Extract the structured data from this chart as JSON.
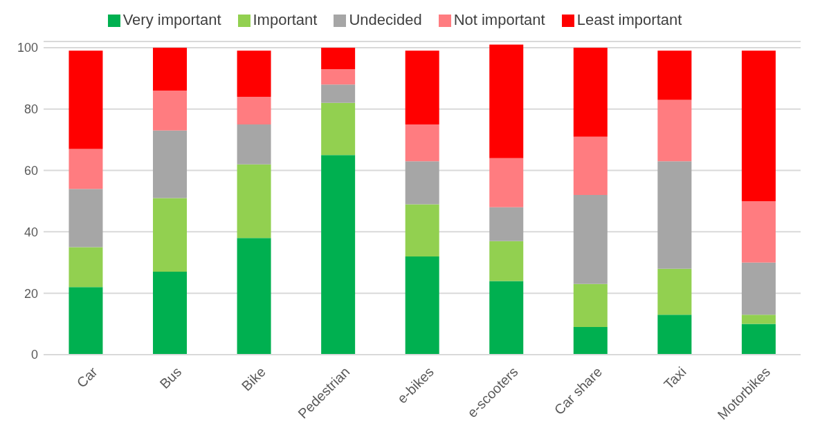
{
  "chart_data": {
    "type": "bar",
    "stacked": true,
    "categories": [
      "Car",
      "Bus",
      "Bike",
      "Pedestrian",
      "e-bikes",
      "e-scooters",
      "Car share",
      "Taxi",
      "Motorbikes"
    ],
    "series": [
      {
        "name": "Very important",
        "color": "#00b050",
        "values": [
          22,
          27,
          38,
          65,
          32,
          24,
          9,
          13,
          10
        ]
      },
      {
        "name": "Important",
        "color": "#92d050",
        "values": [
          13,
          24,
          24,
          17,
          17,
          13,
          14,
          15,
          3
        ]
      },
      {
        "name": "Undecided",
        "color": "#a6a6a6",
        "values": [
          19,
          22,
          13,
          6,
          14,
          11,
          29,
          35,
          17
        ]
      },
      {
        "name": "Not important",
        "color": "#ff7c80",
        "values": [
          13,
          13,
          9,
          5,
          12,
          16,
          19,
          20,
          20
        ]
      },
      {
        "name": "Least important",
        "color": "#ff0000",
        "values": [
          32,
          14,
          15,
          7,
          24,
          37,
          29,
          16,
          49
        ]
      }
    ],
    "ylim": [
      0,
      102
    ],
    "yticks": [
      0,
      20,
      40,
      60,
      80,
      100
    ],
    "grid": "y",
    "legend": "top"
  }
}
